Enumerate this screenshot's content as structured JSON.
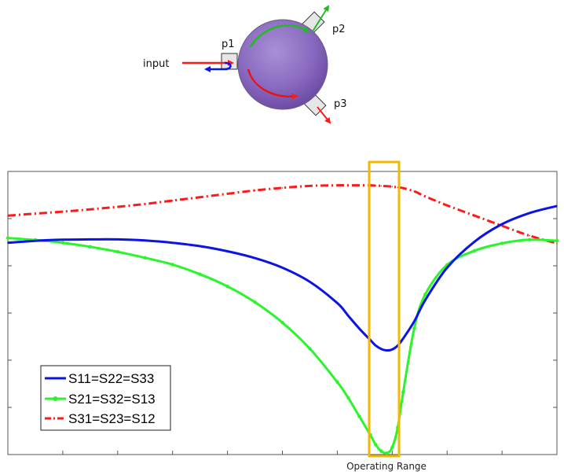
{
  "diagram": {
    "input_label": "input",
    "port_labels": [
      "p1",
      "p2",
      "p3"
    ]
  },
  "chart_data": {
    "type": "line",
    "title": "",
    "xlabel": "",
    "ylabel": "",
    "x": [
      0,
      0.05,
      0.1,
      0.15,
      0.2,
      0.25,
      0.3,
      0.35,
      0.4,
      0.45,
      0.5,
      0.55,
      0.6,
      0.62,
      0.64,
      0.66,
      0.67,
      0.68,
      0.69,
      0.7,
      0.71,
      0.72,
      0.74,
      0.76,
      0.8,
      0.85,
      0.9,
      0.95,
      1.0
    ],
    "xlim": [
      0,
      1
    ],
    "ylim": [
      0,
      1
    ],
    "grid": false,
    "legend_position": "lower-left",
    "series": [
      {
        "name": "S11=S22=S33",
        "color": "#0a14e6",
        "style": "solid",
        "values": [
          0.748,
          0.755,
          0.759,
          0.76,
          0.76,
          0.756,
          0.748,
          0.736,
          0.718,
          0.694,
          0.66,
          0.61,
          0.535,
          0.49,
          0.445,
          0.405,
          0.385,
          0.373,
          0.368,
          0.371,
          0.385,
          0.41,
          0.47,
          0.545,
          0.66,
          0.752,
          0.814,
          0.853,
          0.878
        ]
      },
      {
        "name": "S21=S32=S13",
        "color": "#2af52a",
        "style": "solid-marker",
        "values": [
          0.765,
          0.758,
          0.748,
          0.734,
          0.716,
          0.695,
          0.671,
          0.637,
          0.594,
          0.538,
          0.466,
          0.374,
          0.256,
          0.2,
          0.135,
          0.07,
          0.035,
          0.012,
          0.005,
          0.025,
          0.095,
          0.22,
          0.445,
          0.565,
          0.67,
          0.72,
          0.746,
          0.759,
          0.755
        ]
      },
      {
        "name": "S31=S23=S12",
        "color": "#ff1a1a",
        "style": "dash-dot",
        "values": [
          0.844,
          0.851,
          0.858,
          0.866,
          0.875,
          0.885,
          0.897,
          0.909,
          0.921,
          0.933,
          0.942,
          0.949,
          0.951,
          0.951,
          0.951,
          0.951,
          0.95,
          0.949,
          0.948,
          0.946,
          0.944,
          0.941,
          0.93,
          0.912,
          0.88,
          0.844,
          0.808,
          0.773,
          0.746
        ]
      }
    ],
    "annotations": [
      {
        "text": "Operating Range",
        "x_range": [
          0.655,
          0.71
        ]
      }
    ]
  }
}
